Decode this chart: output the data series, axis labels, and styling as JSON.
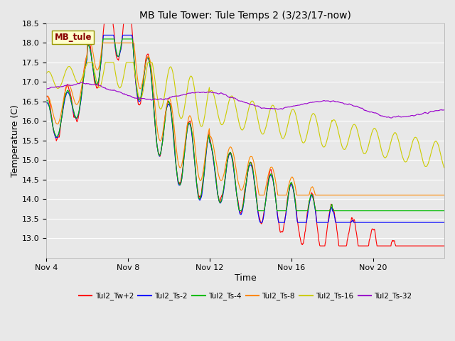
{
  "title": "MB Tule Tower: Tule Temps 2 (3/23/17-now)",
  "xlabel": "Time",
  "ylabel": "Temperature (C)",
  "ylim": [
    12.5,
    18.5
  ],
  "yticks": [
    13.0,
    13.5,
    14.0,
    14.5,
    15.0,
    15.5,
    16.0,
    16.5,
    17.0,
    17.5,
    18.0,
    18.5
  ],
  "xtick_labels": [
    "Nov 4",
    "Nov 8",
    "Nov 12",
    "Nov 16",
    "Nov 20"
  ],
  "xtick_positions": [
    0,
    4,
    8,
    12,
    16
  ],
  "xlim": [
    0,
    19.5
  ],
  "background_color": "#e8e8e8",
  "plot_bg_color": "#e8e8e8",
  "series": [
    {
      "label": "Tul2_Tw+2",
      "color": "#ff0000"
    },
    {
      "label": "Tul2_Ts-2",
      "color": "#0000ff"
    },
    {
      "label": "Tul2_Ts-4",
      "color": "#00bb00"
    },
    {
      "label": "Tul2_Ts-8",
      "color": "#ff8800"
    },
    {
      "label": "Tul2_Ts-16",
      "color": "#cccc00"
    },
    {
      "label": "Tul2_Ts-32",
      "color": "#9900cc"
    }
  ],
  "legend_box_color": "#ffffcc",
  "legend_box_text": "MB_tule",
  "legend_box_text_color": "#880000",
  "figsize": [
    6.4,
    4.8
  ],
  "dpi": 100
}
